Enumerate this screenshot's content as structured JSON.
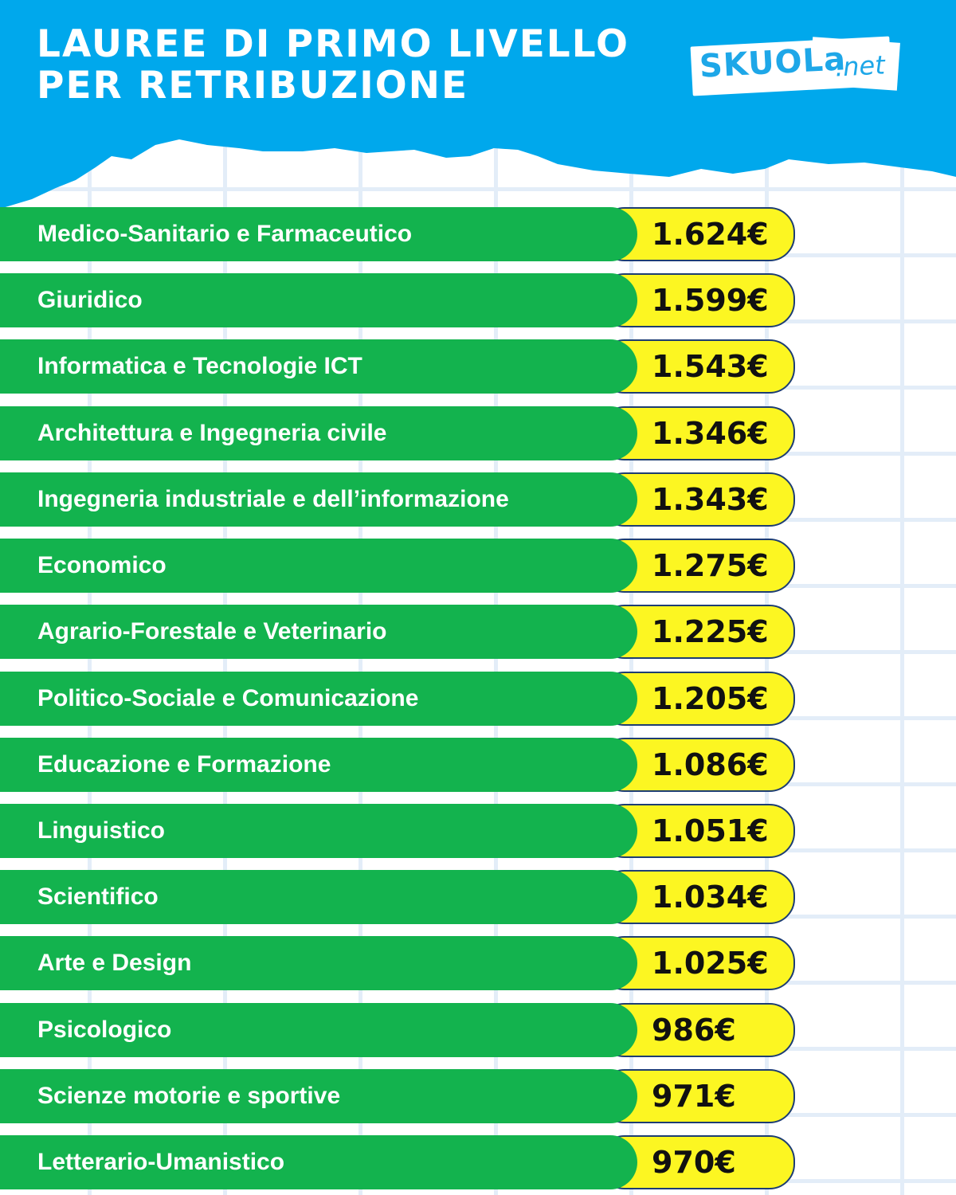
{
  "header": {
    "title_lines": [
      "LAUREE DI PRIMO LIVELLO",
      "PER RETRIBUZIONE"
    ],
    "logo": {
      "brand": "SKUOLa",
      "tld": ".net"
    },
    "colors": {
      "sky": "#00a8ec",
      "bar": "#13b34e",
      "value_pill": "#fcf622",
      "logo": "#1ea7e8"
    }
  },
  "chart_data": {
    "type": "bar",
    "title": "LAUREE DI PRIMO LIVELLO PER RETRIBUZIONE",
    "categories": [
      "Medico-Sanitario e Farmaceutico",
      "Giuridico",
      "Informatica e Tecnologie ICT",
      "Architettura e Ingegneria civile",
      "Ingegneria industriale e dell’informazione",
      "Economico",
      "Agrario-Forestale e Veterinario",
      "Politico-Sociale e Comunicazione",
      "Educazione e Formazione",
      "Linguistico",
      "Scientifico",
      "Arte e Design",
      "Psicologico",
      "Scienze motorie e sportive",
      "Letterario-Umanistico"
    ],
    "values": [
      1624,
      1599,
      1543,
      1346,
      1343,
      1275,
      1225,
      1205,
      1086,
      1051,
      1034,
      1025,
      986,
      971,
      970
    ],
    "value_labels": [
      "1.624€",
      "1.599€",
      "1.543€",
      "1.346€",
      "1.343€",
      "1.275€",
      "1.225€",
      "1.205€",
      "1.086€",
      "1.051€",
      "1.034€",
      "1.025€",
      "986€",
      "971€",
      "970€"
    ],
    "orientation": "horizontal",
    "sorted": "descending",
    "grid": true
  }
}
